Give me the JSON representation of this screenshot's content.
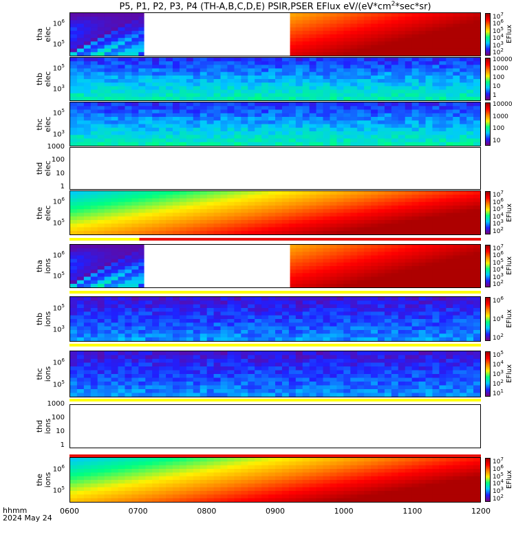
{
  "title": "P5, P1, P2, P3, P4 (TH-A,B,C,D,E) PSIR,PSER EFlux eV/(eV*cm",
  "title_sup": "2",
  "title_tail": "*sec*sr)",
  "x_axis": {
    "label_line1": "hhmm",
    "label_line2": "2024 May 24",
    "ticks": [
      "0600",
      "0700",
      "0800",
      "0900",
      "1000",
      "1100",
      "1200"
    ]
  },
  "colors": {
    "flag_red": "#e8100c",
    "flag_yellow": "#ffff00",
    "colormap": [
      "#7b007b",
      "#2020ff",
      "#00c8ff",
      "#00ff80",
      "#fff000",
      "#ff8000",
      "#ff0000",
      "#a00000"
    ]
  },
  "panels": [
    {
      "id": "tha-elec",
      "label1": "tha",
      "label2": "elec",
      "yticks": [
        {
          "base": "10",
          "exp": "6"
        },
        {
          "base": "10",
          "exp": "5"
        }
      ],
      "cbar": [
        {
          "base": "10",
          "exp": "7"
        },
        {
          "base": "10",
          "exp": "6"
        },
        {
          "base": "10",
          "exp": "5"
        },
        {
          "base": "10",
          "exp": "4"
        },
        {
          "base": "10",
          "exp": "3"
        },
        {
          "base": "10",
          "exp": "2"
        }
      ],
      "cbar_label": "EFlux",
      "data_gap": [
        "0705",
        "0873"
      ],
      "level": "high"
    },
    {
      "id": "thb-elec",
      "label1": "thb",
      "label2": "elec",
      "yticks": [
        {
          "base": "10",
          "exp": "5"
        },
        {
          "base": "10",
          "exp": "3"
        }
      ],
      "cbar": [
        {
          "base": "10000",
          "exp": ""
        },
        {
          "base": "1000",
          "exp": ""
        },
        {
          "base": "100",
          "exp": ""
        },
        {
          "base": "10",
          "exp": ""
        },
        {
          "base": "1",
          "exp": ""
        }
      ],
      "cbar_label": "",
      "level": "low"
    },
    {
      "id": "thc-elec",
      "label1": "thc",
      "label2": "elec",
      "yticks": [
        {
          "base": "10",
          "exp": "5"
        },
        {
          "base": "10",
          "exp": "3"
        }
      ],
      "cbar": [
        {
          "base": "10000",
          "exp": ""
        },
        {
          "base": "1000",
          "exp": ""
        },
        {
          "base": "100",
          "exp": ""
        },
        {
          "base": "10",
          "exp": ""
        }
      ],
      "cbar_label": "",
      "level": "low"
    },
    {
      "id": "thd-elec",
      "label1": "thd",
      "label2": "elec",
      "yticks": [
        {
          "base": "1000",
          "exp": ""
        },
        {
          "base": "100",
          "exp": ""
        },
        {
          "base": "10",
          "exp": ""
        },
        {
          "base": "1",
          "exp": ""
        }
      ],
      "cbar": [],
      "cbar_label": "",
      "level": "none"
    },
    {
      "id": "the-elec",
      "label1": "the",
      "label2": "elec",
      "yticks": [
        {
          "base": "10",
          "exp": "6"
        },
        {
          "base": "10",
          "exp": "5"
        }
      ],
      "cbar": [
        {
          "base": "10",
          "exp": "7"
        },
        {
          "base": "10",
          "exp": "6"
        },
        {
          "base": "10",
          "exp": "5"
        },
        {
          "base": "10",
          "exp": "4"
        },
        {
          "base": "10",
          "exp": "3"
        },
        {
          "base": "10",
          "exp": "2"
        }
      ],
      "cbar_label": "EFlux",
      "level": "rise"
    },
    {
      "id": "tha-ions",
      "label1": "tha",
      "label2": "ions",
      "yticks": [
        {
          "base": "10",
          "exp": "6"
        },
        {
          "base": "10",
          "exp": "5"
        }
      ],
      "cbar": [
        {
          "base": "10",
          "exp": "7"
        },
        {
          "base": "10",
          "exp": "6"
        },
        {
          "base": "10",
          "exp": "5"
        },
        {
          "base": "10",
          "exp": "4"
        },
        {
          "base": "10",
          "exp": "3"
        },
        {
          "base": "10",
          "exp": "2"
        }
      ],
      "cbar_label": "EFlux",
      "data_gap": [
        "0705",
        "0873"
      ],
      "level": "high"
    },
    {
      "id": "thb-ions",
      "label1": "thb",
      "label2": "ions",
      "yticks": [
        {
          "base": "10",
          "exp": "5"
        },
        {
          "base": "10",
          "exp": "3"
        }
      ],
      "cbar": [
        {
          "base": "10",
          "exp": "6"
        },
        {
          "base": "10",
          "exp": "4"
        },
        {
          "base": "10",
          "exp": "2"
        }
      ],
      "cbar_label": "EFlux",
      "level": "dim"
    },
    {
      "id": "thc-ions",
      "label1": "thc",
      "label2": "ions",
      "yticks": [
        {
          "base": "10",
          "exp": "6"
        },
        {
          "base": "10",
          "exp": "5"
        }
      ],
      "cbar": [
        {
          "base": "10",
          "exp": "5"
        },
        {
          "base": "10",
          "exp": "4"
        },
        {
          "base": "10",
          "exp": "3"
        },
        {
          "base": "10",
          "exp": "2"
        },
        {
          "base": "10",
          "exp": "1"
        }
      ],
      "cbar_label": "EFlux",
      "level": "dim"
    },
    {
      "id": "thd-ions",
      "label1": "thd",
      "label2": "ions",
      "yticks": [
        {
          "base": "1000",
          "exp": ""
        },
        {
          "base": "100",
          "exp": ""
        },
        {
          "base": "10",
          "exp": ""
        },
        {
          "base": "1",
          "exp": ""
        }
      ],
      "cbar": [],
      "cbar_label": "",
      "level": "none"
    },
    {
      "id": "the-ions",
      "label1": "the",
      "label2": "ions",
      "yticks": [
        {
          "base": "10",
          "exp": "6"
        },
        {
          "base": "10",
          "exp": "5"
        }
      ],
      "cbar": [
        {
          "base": "10",
          "exp": "7"
        },
        {
          "base": "10",
          "exp": "6"
        },
        {
          "base": "10",
          "exp": "5"
        },
        {
          "base": "10",
          "exp": "4"
        },
        {
          "base": "10",
          "exp": "3"
        },
        {
          "base": "10",
          "exp": "2"
        }
      ],
      "cbar_label": "EFlux",
      "level": "rise"
    }
  ],
  "chart_data": {
    "type": "heatmap",
    "title": "P5, P1, P2, P3, P4 (TH-A,B,C,D,E) PSIR,PSER EFlux eV/(eV*cm2*sec*sr)",
    "x": {
      "label": "hhmm 2024 May 24",
      "ticks": [
        "0600",
        "0700",
        "0800",
        "0900",
        "1000",
        "1100",
        "1200"
      ]
    },
    "series": [
      {
        "name": "tha elec",
        "yscale": "log",
        "color_label": "EFlux",
        "color_range": [
          "10^2",
          "10^7"
        ],
        "data_gap": [
          "0705",
          "0873"
        ]
      },
      {
        "name": "thb elec",
        "yscale": "log",
        "color_range": [
          "1",
          "10000"
        ]
      },
      {
        "name": "thc elec",
        "yscale": "log",
        "color_range": [
          "10",
          "10000"
        ]
      },
      {
        "name": "thd elec",
        "yscale": "log",
        "ylim": [
          1,
          1000
        ],
        "values": []
      },
      {
        "name": "the elec",
        "yscale": "log",
        "color_label": "EFlux",
        "color_range": [
          "10^2",
          "10^7"
        ]
      },
      {
        "name": "tha ions",
        "yscale": "log",
        "color_label": "EFlux",
        "color_range": [
          "10^2",
          "10^7"
        ],
        "data_gap": [
          "0705",
          "0873"
        ]
      },
      {
        "name": "thb ions",
        "yscale": "log",
        "color_label": "EFlux",
        "color_range": [
          "10^2",
          "10^6"
        ]
      },
      {
        "name": "thc ions",
        "yscale": "log",
        "color_label": "EFlux",
        "color_range": [
          "10^1",
          "10^5"
        ]
      },
      {
        "name": "thd ions",
        "yscale": "log",
        "ylim": [
          1,
          1000
        ],
        "values": []
      },
      {
        "name": "the ions",
        "yscale": "log",
        "color_label": "EFlux",
        "color_range": [
          "10^2",
          "10^7"
        ]
      }
    ]
  }
}
